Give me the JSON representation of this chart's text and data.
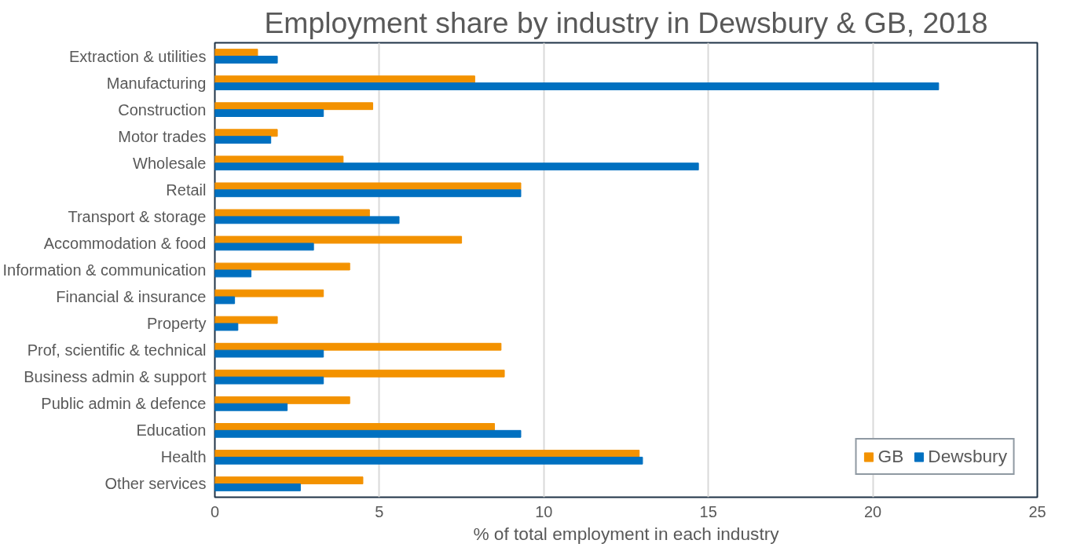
{
  "chart_data": {
    "type": "bar",
    "orientation": "horizontal",
    "title": "Employment share by industry in Dewsbury & GB, 2018",
    "xlabel": "% of total employment in each industry",
    "categories": [
      "Extraction & utilities",
      "Manufacturing",
      "Construction",
      "Motor trades",
      "Wholesale",
      "Retail",
      "Transport & storage",
      "Accommodation & food",
      "Information & communication",
      "Financial & insurance",
      "Property",
      "Prof, scientific & technical",
      "Business admin & support",
      "Public admin & defence",
      "Education",
      "Health",
      "Other services"
    ],
    "series": [
      {
        "name": "GB",
        "color": "#f39200",
        "values": [
          1.3,
          7.9,
          4.8,
          1.9,
          3.9,
          9.3,
          4.7,
          7.5,
          4.1,
          3.3,
          1.9,
          8.7,
          8.8,
          4.1,
          8.5,
          12.9,
          4.5
        ]
      },
      {
        "name": "Dewsbury",
        "color": "#0070c0",
        "values": [
          1.9,
          22.0,
          3.3,
          1.7,
          14.7,
          9.3,
          5.6,
          3.0,
          1.1,
          0.6,
          0.7,
          3.3,
          3.3,
          2.2,
          9.3,
          13.0,
          2.6
        ]
      }
    ],
    "xlim": [
      0,
      25
    ],
    "xticks": [
      0,
      5,
      10,
      15,
      20,
      25
    ],
    "grid": "x",
    "legend": "bottom right"
  }
}
